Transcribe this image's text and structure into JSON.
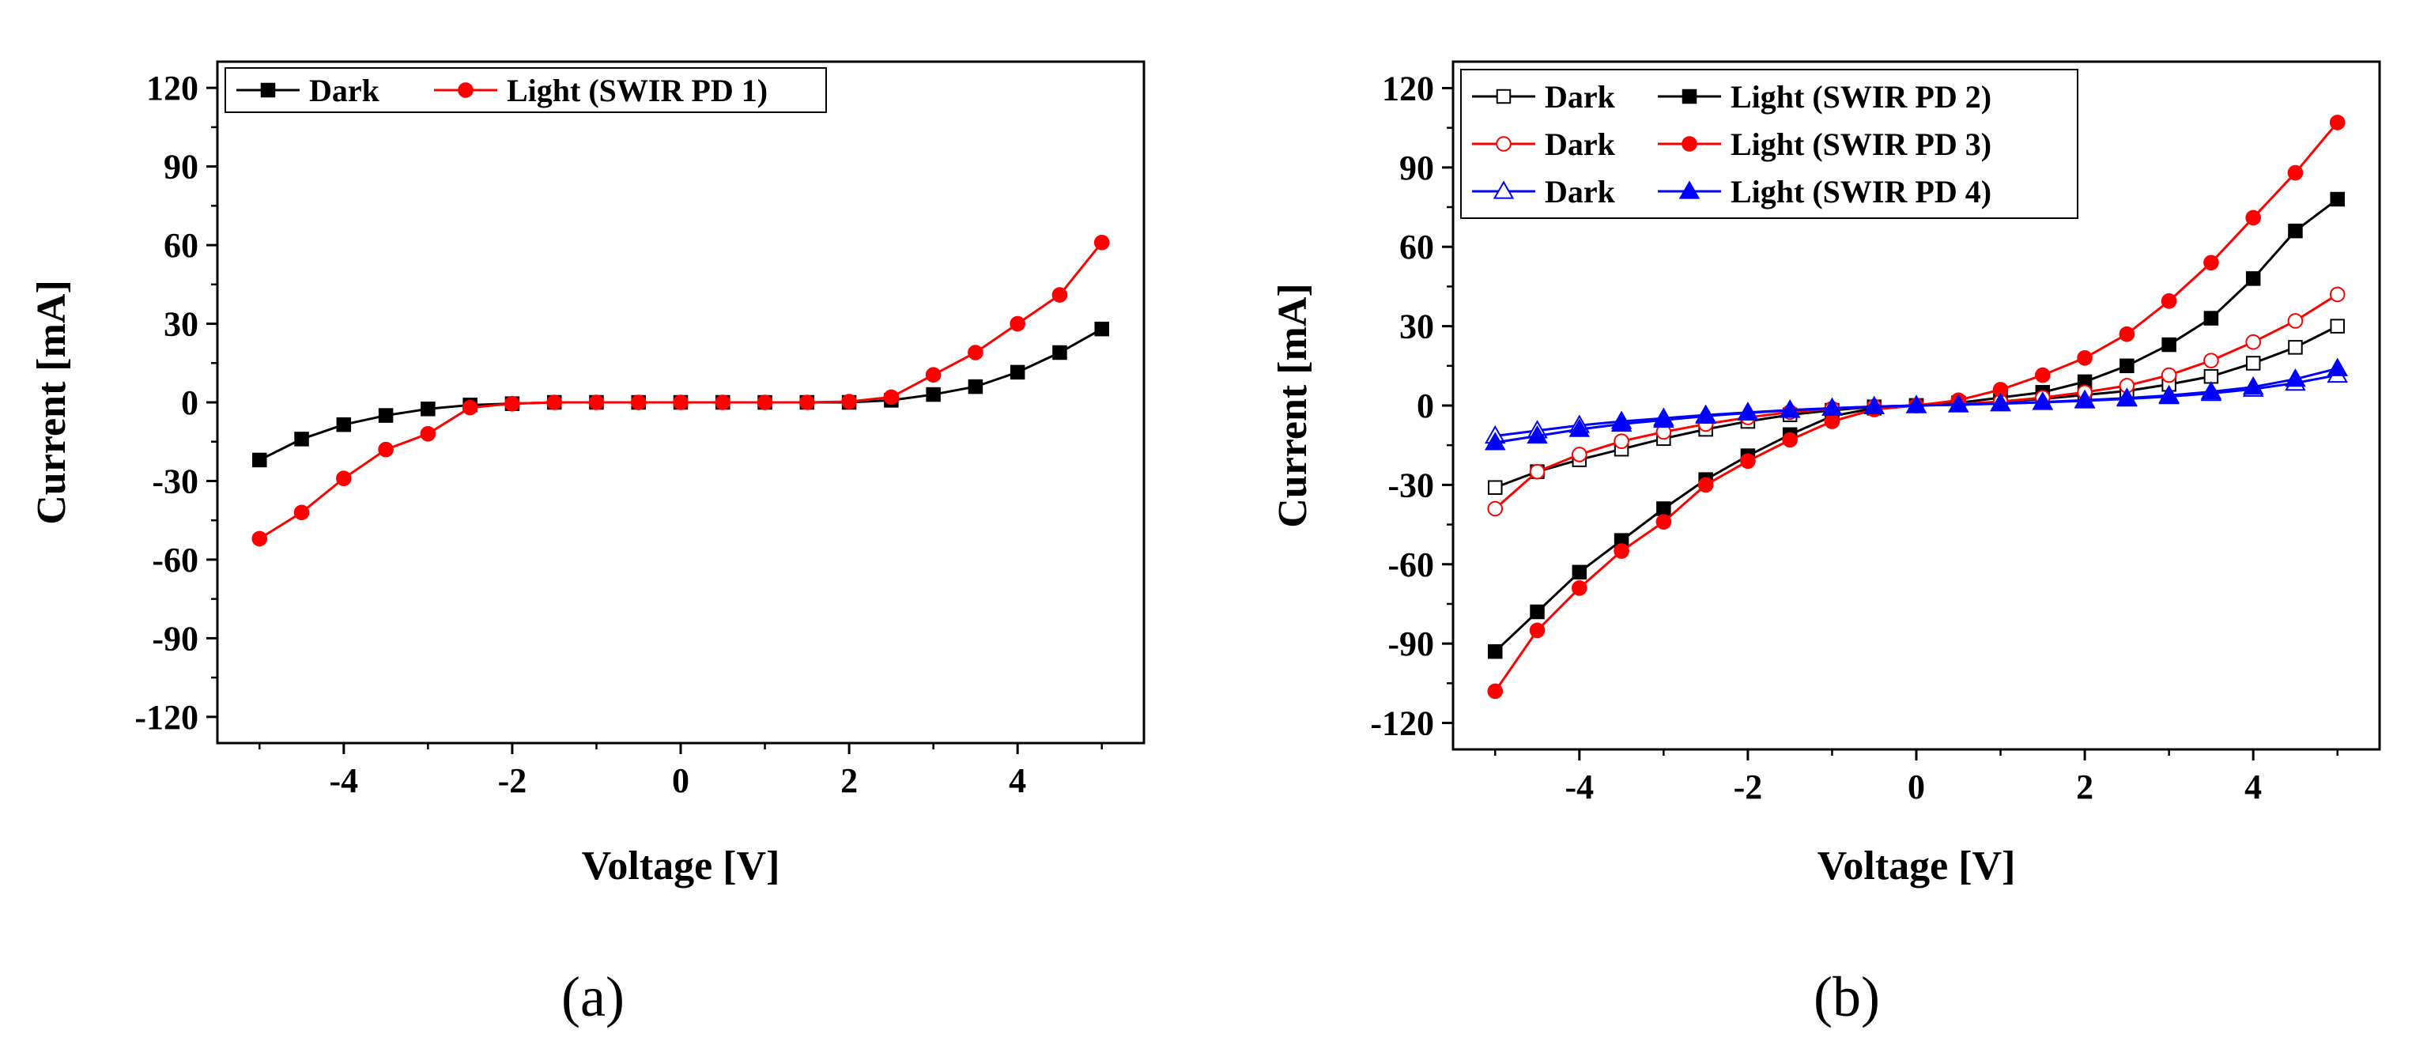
{
  "figure": {
    "panel_labels": [
      "(a)",
      "(b)"
    ]
  },
  "chart_data": [
    {
      "type": "line",
      "panel_label": "(a)",
      "xlabel": "Voltage [V]",
      "ylabel": "Current [mA]",
      "xlim": [
        -5.5,
        5.5
      ],
      "ylim": [
        -130,
        130
      ],
      "xticks": [
        -4,
        -2,
        0,
        2,
        4
      ],
      "yticks": [
        -120,
        -90,
        -60,
        -30,
        0,
        30,
        60,
        90,
        120
      ],
      "grid": false,
      "legend_position": "top-left",
      "x": [
        -5,
        -4.5,
        -4,
        -3.5,
        -3,
        -2.5,
        -2,
        -1.5,
        -1,
        -0.5,
        0,
        0.5,
        1,
        1.5,
        2,
        2.5,
        3,
        3.5,
        4,
        4.5,
        5
      ],
      "series": [
        {
          "name": "Dark",
          "color": "#000000",
          "marker": "square-filled",
          "values": [
            -22,
            -14,
            -8.5,
            -5,
            -2.5,
            -1,
            -0.5,
            0,
            0,
            0,
            0,
            0,
            0,
            0,
            0,
            0.8,
            3,
            6,
            11.5,
            19,
            28
          ]
        },
        {
          "name": "Light (SWIR PD 1)",
          "color": "#ff0000",
          "marker": "circle-filled",
          "values": [
            -52,
            -42,
            -29,
            -18,
            -12,
            -2,
            -0.5,
            0,
            0,
            0,
            0,
            0,
            0,
            0,
            0.3,
            2,
            10.5,
            19,
            30,
            41,
            61
          ]
        }
      ]
    },
    {
      "type": "line",
      "panel_label": "(b)",
      "xlabel": "Voltage [V]",
      "ylabel": "Current [mA]",
      "xlim": [
        -5.5,
        5.5
      ],
      "ylim": [
        -130,
        130
      ],
      "xticks": [
        -4,
        -2,
        0,
        2,
        4
      ],
      "yticks": [
        -120,
        -90,
        -60,
        -30,
        0,
        30,
        60,
        90,
        120
      ],
      "grid": false,
      "legend_position": "top-left",
      "x": [
        -5,
        -4.5,
        -4,
        -3.5,
        -3,
        -2.5,
        -2,
        -1.5,
        -1,
        -0.5,
        0,
        0.5,
        1,
        1.5,
        2,
        2.5,
        3,
        3.5,
        4,
        4.5,
        5
      ],
      "series": [
        {
          "name": "Dark",
          "color": "#000000",
          "marker": "square-open",
          "values": [
            -31,
            -25,
            -20.5,
            -16.5,
            -12.5,
            -9,
            -6,
            -3.5,
            -1.8,
            -0.5,
            0,
            0.6,
            1.4,
            2.5,
            4,
            5.5,
            8,
            11,
            16,
            22,
            30
          ]
        },
        {
          "name": "Light (SWIR PD 2)",
          "color": "#000000",
          "marker": "square-filled",
          "values": [
            -93,
            -78,
            -63,
            -51,
            -39,
            -28,
            -19,
            -11,
            -4,
            -1,
            0,
            1,
            3,
            5,
            9,
            15,
            23,
            33,
            48,
            66,
            78
          ]
        },
        {
          "name": "Dark",
          "color": "#ff0000",
          "marker": "circle-open",
          "values": [
            -39,
            -25,
            -18.5,
            -13.5,
            -10,
            -7,
            -4.5,
            -2.5,
            -1.2,
            -0.4,
            0,
            0.5,
            1.5,
            3,
            5,
            7.5,
            11.5,
            17,
            24,
            32,
            42
          ]
        },
        {
          "name": "Light (SWIR PD 3)",
          "color": "#ff0000",
          "marker": "circle-filled",
          "values": [
            -108,
            -85,
            -69,
            -55,
            -44,
            -30,
            -21,
            -13,
            -6,
            -1.5,
            0,
            2,
            6,
            11.5,
            18,
            27,
            39.5,
            54,
            71,
            88,
            107
          ]
        },
        {
          "name": "Dark",
          "color": "#0000ff",
          "marker": "triangle-open",
          "values": [
            -11.5,
            -9.5,
            -7.5,
            -6,
            -4.8,
            -3.6,
            -2.6,
            -1.7,
            -1,
            -0.4,
            0,
            0.3,
            0.7,
            1.2,
            1.8,
            2.5,
            3.4,
            4.6,
            6.2,
            8.5,
            11.5
          ]
        },
        {
          "name": "Light (SWIR PD 4)",
          "color": "#0000ff",
          "marker": "triangle-filled",
          "values": [
            -14,
            -11.5,
            -9,
            -7,
            -5.5,
            -4,
            -2.8,
            -1.8,
            -1,
            -0.4,
            0,
            0.3,
            0.8,
            1.3,
            2,
            2.8,
            3.8,
            5.2,
            7,
            10,
            14
          ]
        }
      ]
    }
  ]
}
